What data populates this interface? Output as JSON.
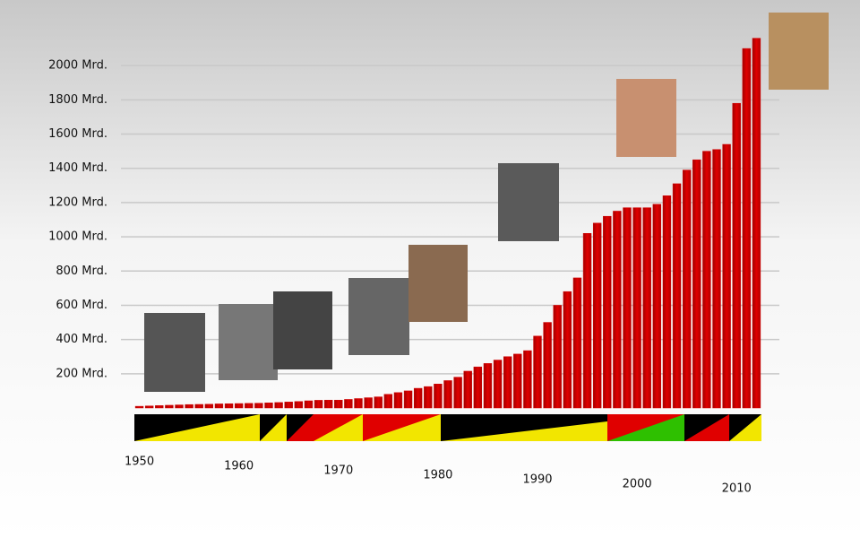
{
  "chart_data": {
    "type": "bar",
    "categories": [
      "1950",
      null,
      null,
      null,
      null,
      null,
      null,
      null,
      null,
      null,
      "1960",
      null,
      null,
      null,
      null,
      null,
      null,
      null,
      null,
      null,
      "1970",
      null,
      null,
      null,
      null,
      null,
      null,
      null,
      null,
      null,
      "1980",
      null,
      null,
      null,
      null,
      null,
      null,
      null,
      null,
      null,
      "1990",
      null,
      null,
      null,
      null,
      null,
      null,
      null,
      null,
      null,
      "2000",
      null,
      null,
      null,
      null,
      null,
      null,
      null,
      null,
      null,
      "2010",
      null,
      null
    ],
    "values": [
      10,
      12,
      14,
      16,
      18,
      20,
      21,
      22,
      24,
      25,
      26,
      27,
      28,
      30,
      32,
      35,
      38,
      42,
      45,
      46,
      46,
      50,
      55,
      60,
      65,
      80,
      90,
      100,
      115,
      125,
      140,
      160,
      180,
      215,
      240,
      260,
      280,
      300,
      315,
      335,
      420,
      500,
      600,
      680,
      760,
      1020,
      1080,
      1120,
      1150,
      1170,
      1170,
      1170,
      1190,
      1240,
      1310,
      1390,
      1450,
      1500,
      1510,
      1540,
      1780,
      2100,
      2160
    ],
    "color": "#d40000",
    "ylim": [
      0,
      2200
    ],
    "yticks": [
      {
        "value": 200,
        "label": "200 Mrd."
      },
      {
        "value": 400,
        "label": "400 Mrd."
      },
      {
        "value": 600,
        "label": "600 Mrd."
      },
      {
        "value": 800,
        "label": "800 Mrd."
      },
      {
        "value": 1000,
        "label": "1000 Mrd."
      },
      {
        "value": 1200,
        "label": "1200 Mrd."
      },
      {
        "value": 1400,
        "label": "1400 Mrd."
      },
      {
        "value": 1600,
        "label": "1600 Mrd."
      },
      {
        "value": 1800,
        "label": "1800 Mrd."
      },
      {
        "value": 2000,
        "label": "2000 Mrd."
      }
    ],
    "grid": true
  }
}
